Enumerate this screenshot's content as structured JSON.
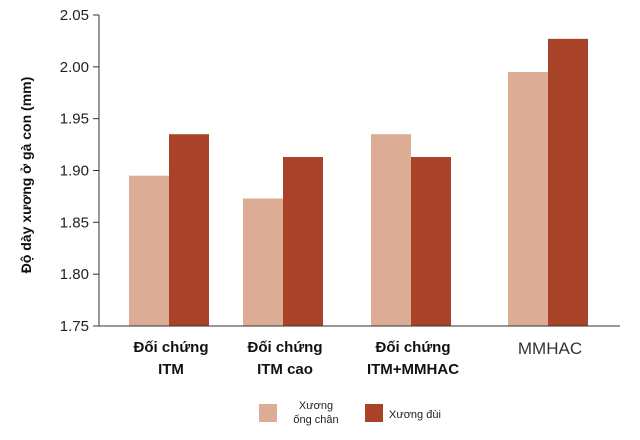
{
  "chart_data": {
    "type": "bar",
    "ylabel": "Độ dày xương ở gà con (mm)",
    "ylim": [
      1.75,
      2.05
    ],
    "yticks": [
      "1.75",
      "1.80",
      "1.85",
      "1.90",
      "1.95",
      "2.00",
      "2.05"
    ],
    "categories": [
      {
        "lines": [
          "Đối chứng",
          "ITM"
        ]
      },
      {
        "lines": [
          "Đối chứng",
          "ITM cao"
        ]
      },
      {
        "lines": [
          "Đối chứng",
          "ITM+MMHAC"
        ]
      },
      {
        "lines": [
          "MMHAC"
        ]
      }
    ],
    "series": [
      {
        "name_lines": [
          "Xương",
          "ống chân"
        ],
        "color": "#dcad94",
        "values": [
          1.895,
          1.873,
          1.935,
          1.995
        ]
      },
      {
        "name_lines": [
          "Xương đùi"
        ],
        "color": "#a8432a",
        "values": [
          1.935,
          1.913,
          1.913,
          2.027
        ]
      }
    ],
    "grid": false,
    "legend": "bottom-center"
  }
}
